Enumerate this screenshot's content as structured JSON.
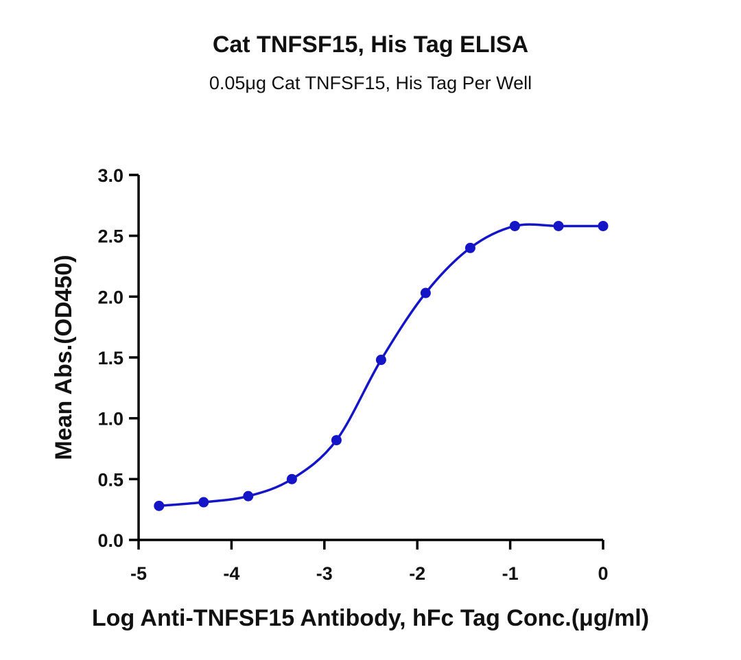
{
  "chart_data": {
    "type": "scatter",
    "title": "Cat TNFSF15, His Tag ELISA",
    "subtitle": "0.05μg Cat TNFSF15, His Tag Per Well",
    "xlabel": "Log Anti-TNFSF15 Antibody, hFc Tag Conc.(μg/ml)",
    "ylabel": "Mean Abs.(OD450)",
    "xlim": [
      -5,
      0
    ],
    "ylim": [
      0,
      3
    ],
    "xticks": [
      "-5",
      "-4",
      "-3",
      "-2",
      "-1",
      "0"
    ],
    "yticks": [
      "0.0",
      "0.5",
      "1.0",
      "1.5",
      "2.0",
      "2.5",
      "3.0"
    ],
    "grid": false,
    "fit": "4PL sigmoidal curve",
    "color": "#1515c8",
    "series": [
      {
        "x": [
          -4.78,
          -4.3,
          -3.82,
          -3.35,
          -2.87,
          -2.39,
          -1.91,
          -1.43,
          -0.95,
          -0.48,
          0.0
        ],
        "values": [
          0.28,
          0.31,
          0.36,
          0.5,
          0.82,
          1.48,
          2.03,
          2.4,
          2.58,
          2.58,
          2.58
        ]
      }
    ]
  }
}
